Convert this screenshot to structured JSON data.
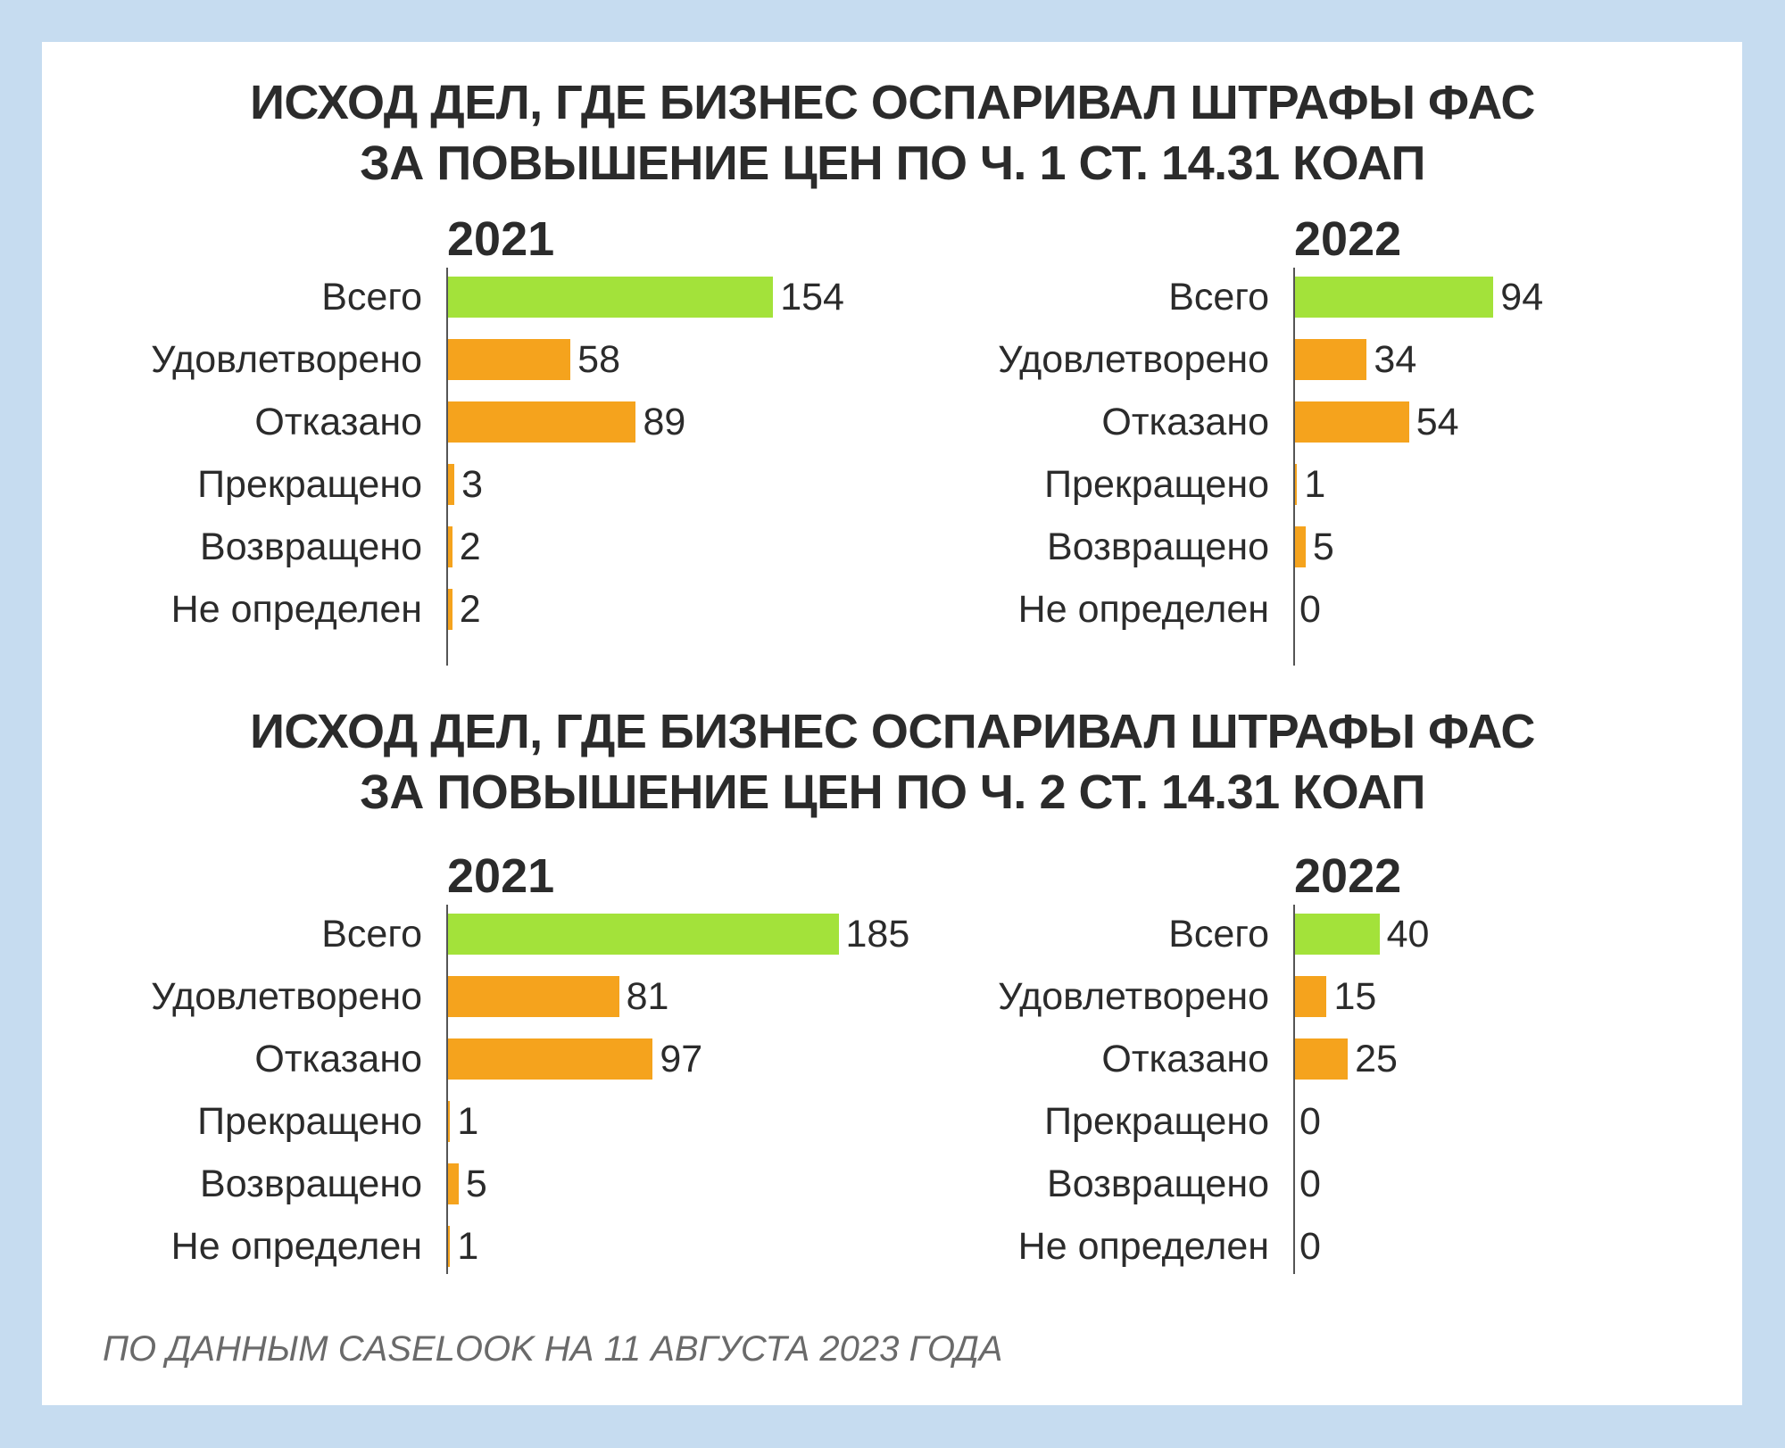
{
  "colors": {
    "background": "#c6dcf0",
    "total": "#a3e23a",
    "category": "#f5a31d",
    "text": "#2b2b2b"
  },
  "footnote": "ПО ДАННЫМ CASELOOK НА 11 АВГУСТА 2023 ГОДА",
  "chart_data": [
    {
      "type": "bar",
      "orientation": "horizontal",
      "title": [
        "ИСХОД ДЕЛ, ГДЕ БИЗНЕС ОСПАРИВАЛ ШТРАФЫ ФАС",
        "ЗА ПОВЫШЕНИЕ ЦЕН ПО Ч. 1 СТ. 14.31 КОАП"
      ],
      "categories": [
        "Всего",
        "Удовлетворено",
        "Отказано",
        "Прекращено",
        "Возвращено",
        "Не определен"
      ],
      "series": [
        {
          "name": "2021",
          "values": [
            154,
            58,
            89,
            3,
            2,
            2
          ]
        },
        {
          "name": "2022",
          "values": [
            94,
            34,
            54,
            1,
            5,
            0
          ]
        }
      ]
    },
    {
      "type": "bar",
      "orientation": "horizontal",
      "title": [
        "ИСХОД ДЕЛ, ГДЕ БИЗНЕС ОСПАРИВАЛ ШТРАФЫ ФАС",
        "ЗА ПОВЫШЕНИЕ ЦЕН ПО Ч. 2 СТ. 14.31 КОАП"
      ],
      "categories": [
        "Всего",
        "Удовлетворено",
        "Отказано",
        "Прекращено",
        "Возвращено",
        "Не определен"
      ],
      "series": [
        {
          "name": "2021",
          "values": [
            185,
            81,
            97,
            1,
            5,
            1
          ]
        },
        {
          "name": "2022",
          "values": [
            40,
            15,
            25,
            0,
            0,
            0
          ]
        }
      ]
    }
  ]
}
